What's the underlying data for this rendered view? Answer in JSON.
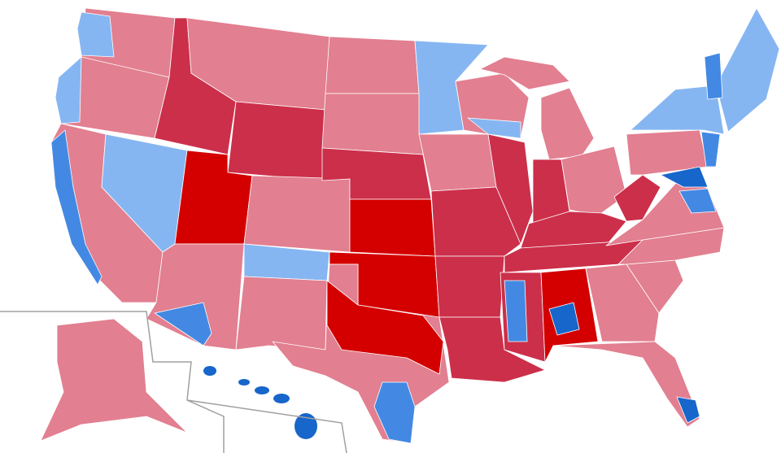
{
  "palette": {
    "r_lean": "#f2b3be",
    "r_likely": "#e27f90",
    "r_solid": "#cc2f4a",
    "r_strong": "#d40000",
    "r_max": "#aa0000",
    "d_lean": "#b9d7ff",
    "d_likely": "#86b6f2",
    "d_solid": "#4389e3",
    "d_strong": "#1666cb",
    "d_max": "#0645b4"
  },
  "regions": [
    {
      "name": "washington",
      "color": "r_likely"
    },
    {
      "name": "washington-west",
      "color": "d_likely"
    },
    {
      "name": "oregon",
      "color": "r_likely"
    },
    {
      "name": "oregon-coast",
      "color": "d_likely"
    },
    {
      "name": "california",
      "color": "r_likely"
    },
    {
      "name": "california-coast",
      "color": "d_solid"
    },
    {
      "name": "nevada",
      "color": "d_likely"
    },
    {
      "name": "idaho",
      "color": "r_solid"
    },
    {
      "name": "montana",
      "color": "r_likely"
    },
    {
      "name": "wyoming",
      "color": "r_solid"
    },
    {
      "name": "utah",
      "color": "r_strong"
    },
    {
      "name": "arizona",
      "color": "r_likely"
    },
    {
      "name": "arizona-south",
      "color": "d_solid"
    },
    {
      "name": "colorado",
      "color": "r_likely"
    },
    {
      "name": "new-mexico",
      "color": "d_likely"
    },
    {
      "name": "new-mexico-south",
      "color": "r_likely"
    },
    {
      "name": "north-dakota",
      "color": "r_likely"
    },
    {
      "name": "south-dakota",
      "color": "r_likely"
    },
    {
      "name": "nebraska",
      "color": "r_solid"
    },
    {
      "name": "kansas",
      "color": "r_strong"
    },
    {
      "name": "oklahoma",
      "color": "r_strong"
    },
    {
      "name": "oklahoma-panhandle",
      "color": "r_max"
    },
    {
      "name": "texas",
      "color": "r_likely"
    },
    {
      "name": "texas-north",
      "color": "r_strong"
    },
    {
      "name": "texas-south",
      "color": "d_solid"
    },
    {
      "name": "minnesota",
      "color": "d_likely"
    },
    {
      "name": "iowa",
      "color": "r_likely"
    },
    {
      "name": "missouri",
      "color": "r_solid"
    },
    {
      "name": "arkansas",
      "color": "r_solid"
    },
    {
      "name": "louisiana",
      "color": "r_solid"
    },
    {
      "name": "wisconsin",
      "color": "r_likely"
    },
    {
      "name": "wisconsin-south",
      "color": "d_likely"
    },
    {
      "name": "illinois",
      "color": "r_solid"
    },
    {
      "name": "michigan-upper",
      "color": "r_likely"
    },
    {
      "name": "michigan",
      "color": "r_likely"
    },
    {
      "name": "indiana",
      "color": "r_solid"
    },
    {
      "name": "ohio",
      "color": "r_likely"
    },
    {
      "name": "kentucky",
      "color": "r_solid"
    },
    {
      "name": "tennessee",
      "color": "r_solid"
    },
    {
      "name": "mississippi",
      "color": "r_solid"
    },
    {
      "name": "mississippi-delta",
      "color": "d_solid"
    },
    {
      "name": "alabama",
      "color": "r_strong"
    },
    {
      "name": "alabama-black-belt",
      "color": "d_strong"
    },
    {
      "name": "georgia",
      "color": "r_likely"
    },
    {
      "name": "florida",
      "color": "r_likely"
    },
    {
      "name": "florida-south",
      "color": "d_strong"
    },
    {
      "name": "south-carolina",
      "color": "r_likely"
    },
    {
      "name": "north-carolina",
      "color": "r_likely"
    },
    {
      "name": "virginia",
      "color": "r_likely"
    },
    {
      "name": "virginia-north",
      "color": "d_solid"
    },
    {
      "name": "west-virginia",
      "color": "r_solid"
    },
    {
      "name": "pennsylvania",
      "color": "r_likely"
    },
    {
      "name": "new-york",
      "color": "d_likely"
    },
    {
      "name": "new-england",
      "color": "d_likely"
    },
    {
      "name": "vermont",
      "color": "d_solid"
    },
    {
      "name": "new-jersey",
      "color": "d_solid"
    },
    {
      "name": "maryland",
      "color": "d_strong"
    },
    {
      "name": "alaska",
      "color": "r_likely"
    },
    {
      "name": "hawaii",
      "color": "d_strong"
    }
  ]
}
